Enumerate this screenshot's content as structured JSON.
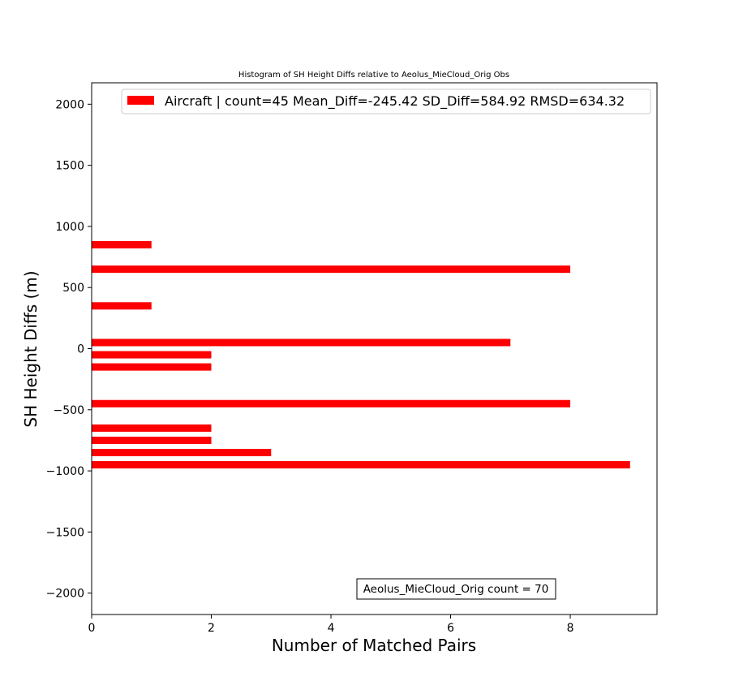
{
  "chart_data": {
    "type": "bar",
    "orientation": "horizontal",
    "title": "Histogram of SH Height Diffs relative to Aeolus_MieCloud_Orig Obs",
    "xlabel": "Number of Matched Pairs",
    "ylabel": "SH Height Diffs (m)",
    "xlim": [
      0,
      9.45
    ],
    "ylim": [
      -2175,
      2175
    ],
    "xticks": [
      0,
      2,
      4,
      6,
      8
    ],
    "yticks": [
      -2000,
      -1500,
      -1000,
      -500,
      0,
      500,
      1000,
      1500,
      2000
    ],
    "xtick_labels": [
      "0",
      "2",
      "4",
      "6",
      "8"
    ],
    "ytick_labels": [
      "−2000",
      "−1500",
      "−1000",
      "−500",
      "0",
      "500",
      "1000",
      "1500",
      "2000"
    ],
    "bin_width": 100,
    "bar_height": 60,
    "grid": false,
    "legend_position": "top-right",
    "series": [
      {
        "name": "Aircraft | count=45 Mean_Diff=-245.42 SD_Diff=584.92 RMSD=634.32",
        "color": "#ff0000",
        "bins": [
          {
            "y": -950,
            "count": 9
          },
          {
            "y": -850,
            "count": 3
          },
          {
            "y": -750,
            "count": 2
          },
          {
            "y": -650,
            "count": 2
          },
          {
            "y": -450,
            "count": 8
          },
          {
            "y": -150,
            "count": 2
          },
          {
            "y": -50,
            "count": 2
          },
          {
            "y": 50,
            "count": 7
          },
          {
            "y": 350,
            "count": 1
          },
          {
            "y": 650,
            "count": 8
          },
          {
            "y": 850,
            "count": 1
          }
        ]
      }
    ],
    "annotation": "Aeolus_MieCloud_Orig count = 70"
  }
}
